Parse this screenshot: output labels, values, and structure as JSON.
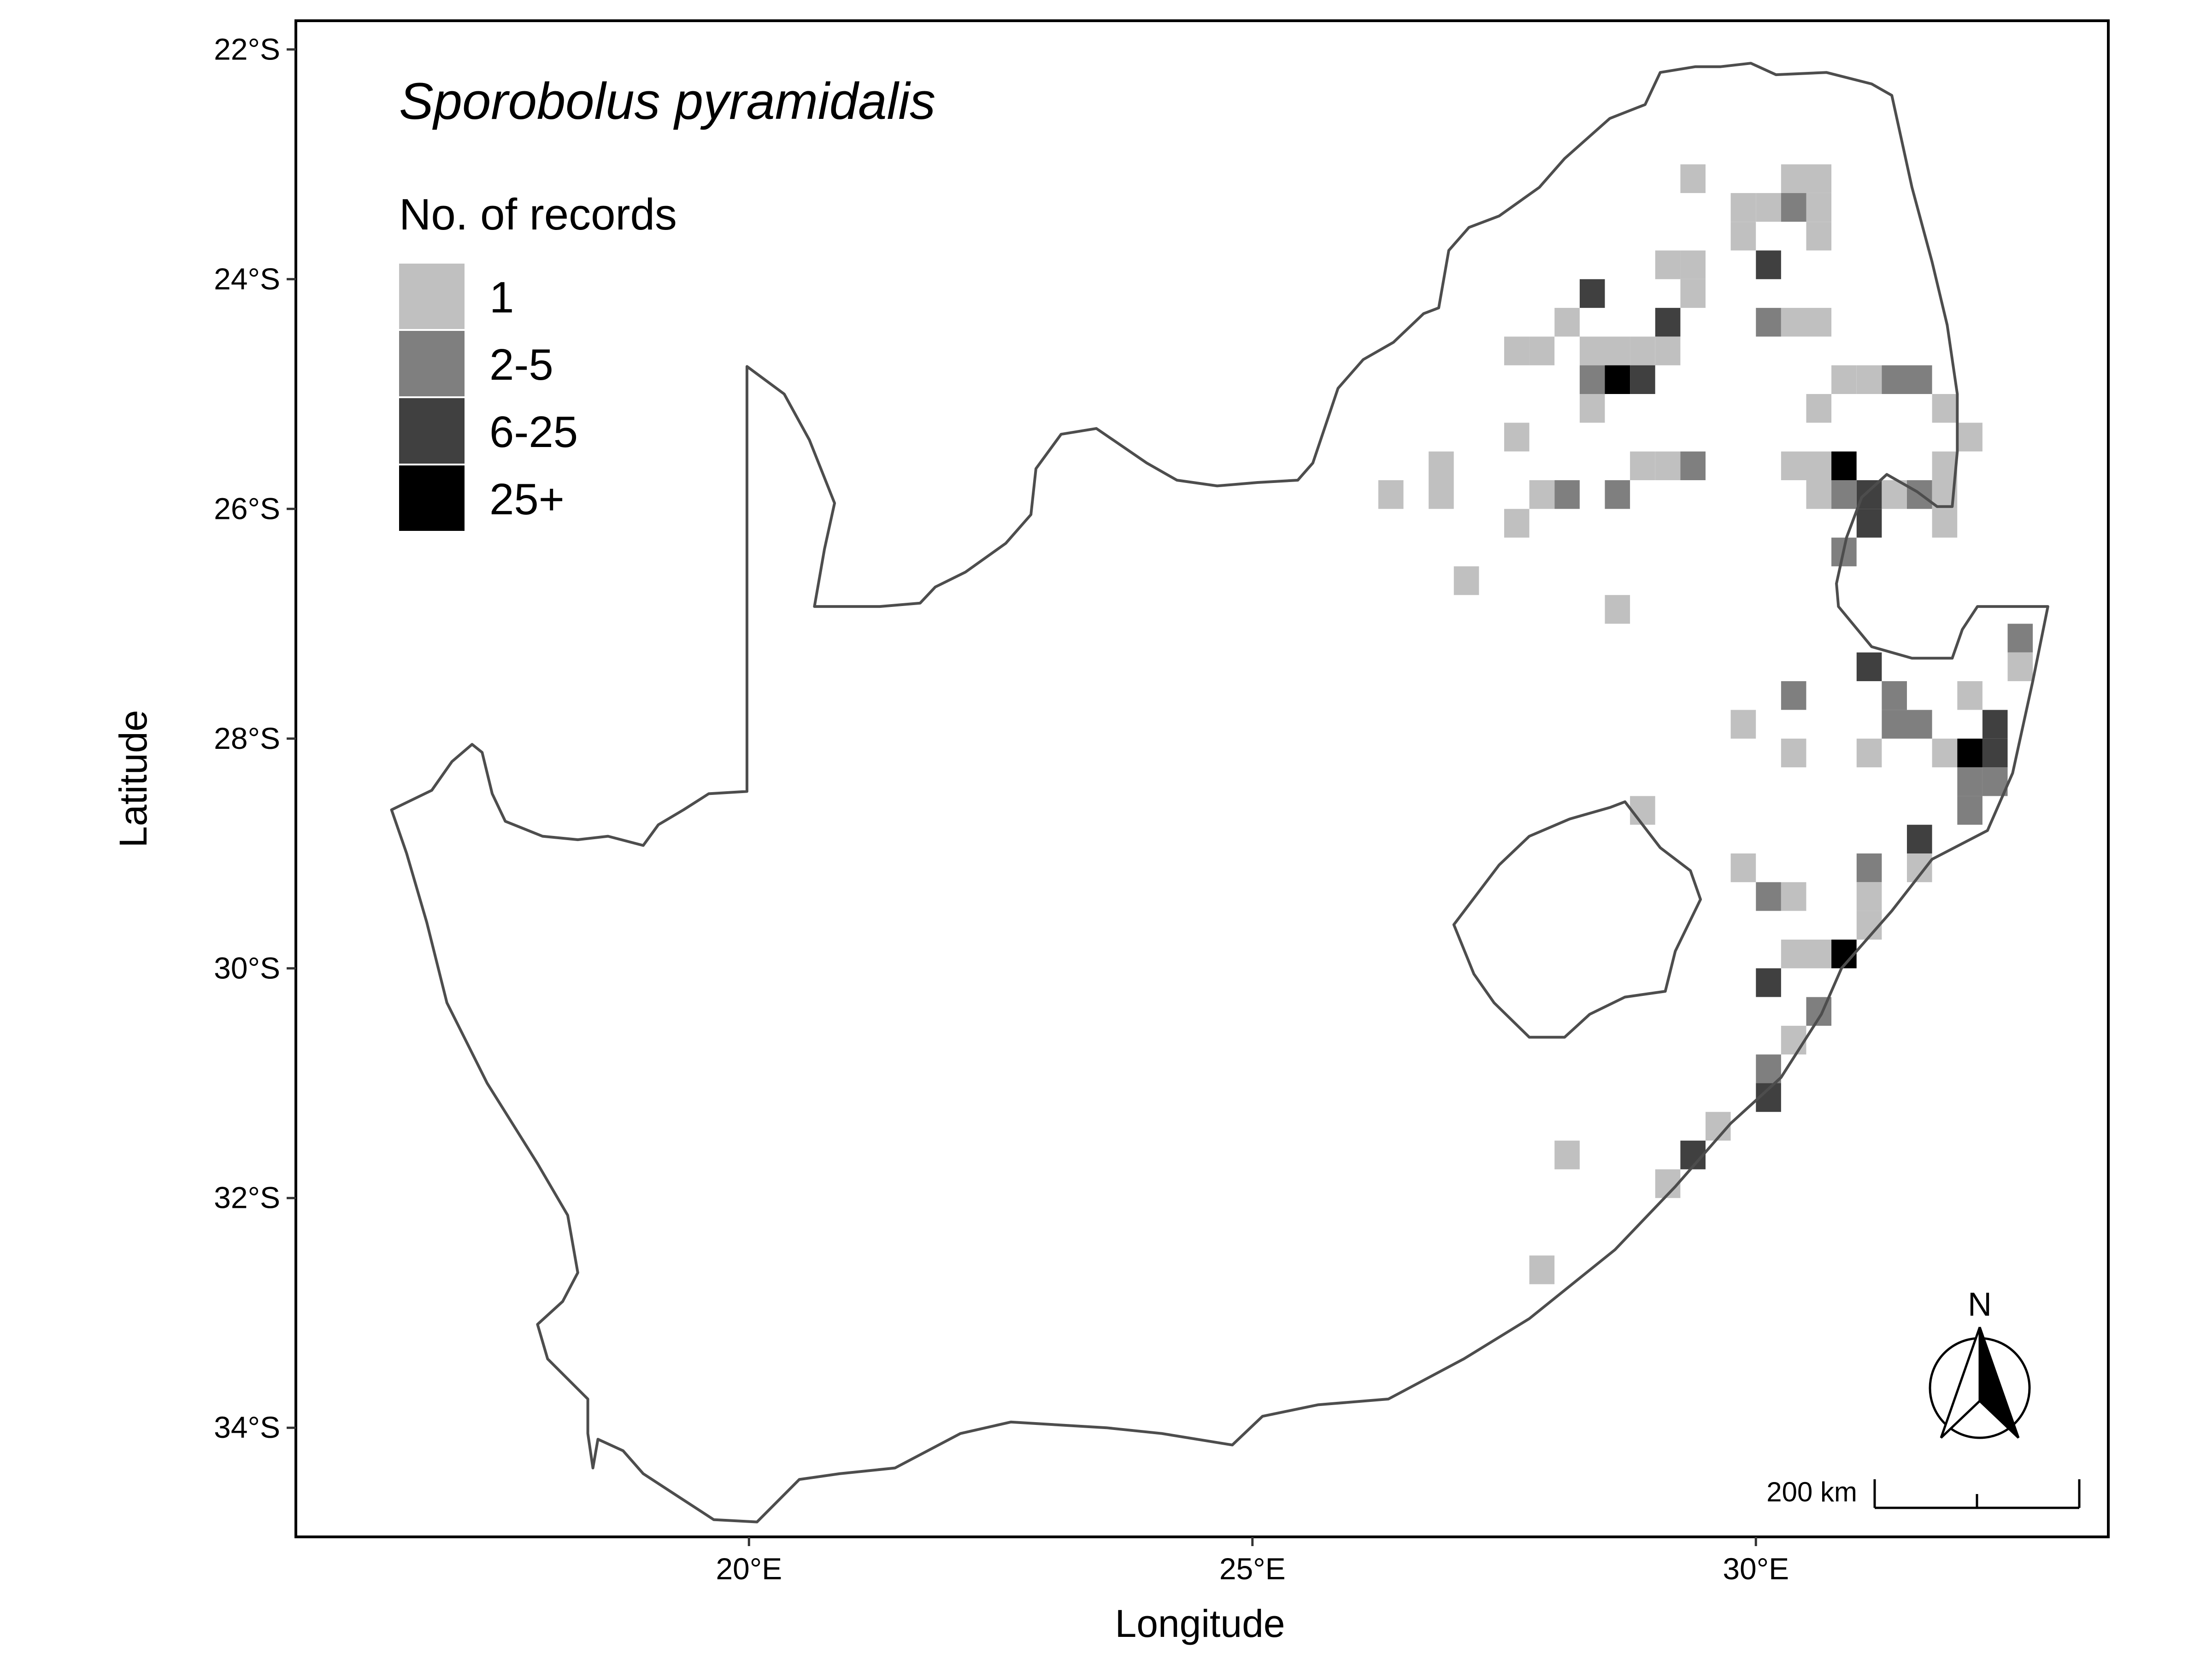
{
  "title": "Sporobolus pyramidalis",
  "legend": {
    "title": "No. of records",
    "classes": [
      {
        "label": "1",
        "color": "#c0c0c0"
      },
      {
        "label": "2-5",
        "color": "#7f7f7f"
      },
      {
        "label": "6-25",
        "color": "#404040"
      },
      {
        "label": "25+",
        "color": "#000000"
      }
    ]
  },
  "axes": {
    "xlabel": "Longitude",
    "ylabel": "Latitude",
    "xticks": [
      {
        "value": 20,
        "label": "20°E"
      },
      {
        "value": 25,
        "label": "25°E"
      },
      {
        "value": 30,
        "label": "30°E"
      }
    ],
    "yticks": [
      {
        "value": -22,
        "label": "22°S"
      },
      {
        "value": -24,
        "label": "24°S"
      },
      {
        "value": -26,
        "label": "26°S"
      },
      {
        "value": -28,
        "label": "28°S"
      },
      {
        "value": -30,
        "label": "30°S"
      },
      {
        "value": -32,
        "label": "32°S"
      },
      {
        "value": -34,
        "label": "34°S"
      }
    ]
  },
  "north_arrow": {
    "label": "N"
  },
  "scale_bar": {
    "label": "200 km"
  },
  "colors": {
    "border": "#4d4d4d",
    "frame": "#000000"
  },
  "chart_data": {
    "type": "grid_map",
    "cell_size_deg": 0.25,
    "xlim": [
      15.5,
      33.5
    ],
    "ylim": [
      -34.95,
      -21.75
    ],
    "levels": [
      "1",
      "2-5",
      "6-25",
      "25+"
    ],
    "cells": [
      [
        29.375,
        -23.125,
        0
      ],
      [
        30.375,
        -23.125,
        0
      ],
      [
        30.625,
        -23.125,
        0
      ],
      [
        29.875,
        -23.375,
        0
      ],
      [
        30.125,
        -23.375,
        0
      ],
      [
        30.375,
        -23.375,
        1
      ],
      [
        30.625,
        -23.375,
        0
      ],
      [
        29.875,
        -23.625,
        0
      ],
      [
        30.625,
        -23.625,
        0
      ],
      [
        29.125,
        -23.875,
        0
      ],
      [
        29.375,
        -23.875,
        0
      ],
      [
        30.125,
        -23.875,
        2
      ],
      [
        28.375,
        -24.125,
        2
      ],
      [
        29.375,
        -24.125,
        0
      ],
      [
        28.125,
        -24.375,
        0
      ],
      [
        29.125,
        -24.375,
        2
      ],
      [
        30.125,
        -24.375,
        1
      ],
      [
        30.375,
        -24.375,
        0
      ],
      [
        30.625,
        -24.375,
        0
      ],
      [
        27.625,
        -24.625,
        0
      ],
      [
        27.875,
        -24.625,
        0
      ],
      [
        28.375,
        -24.625,
        0
      ],
      [
        28.625,
        -24.625,
        0
      ],
      [
        28.875,
        -24.625,
        0
      ],
      [
        29.125,
        -24.625,
        0
      ],
      [
        28.375,
        -24.875,
        1
      ],
      [
        28.625,
        -24.875,
        3
      ],
      [
        28.875,
        -24.875,
        2
      ],
      [
        30.875,
        -24.875,
        0
      ],
      [
        31.125,
        -24.875,
        0
      ],
      [
        31.375,
        -24.875,
        1
      ],
      [
        31.625,
        -24.875,
        1
      ],
      [
        28.375,
        -25.125,
        0
      ],
      [
        30.625,
        -25.125,
        0
      ],
      [
        31.875,
        -25.125,
        0
      ],
      [
        27.625,
        -25.375,
        0
      ],
      [
        32.125,
        -25.375,
        0
      ],
      [
        26.875,
        -25.625,
        0
      ],
      [
        28.875,
        -25.625,
        0
      ],
      [
        29.125,
        -25.625,
        0
      ],
      [
        29.375,
        -25.625,
        1
      ],
      [
        30.375,
        -25.625,
        0
      ],
      [
        30.625,
        -25.625,
        0
      ],
      [
        30.875,
        -25.625,
        3
      ],
      [
        31.875,
        -25.625,
        0
      ],
      [
        26.375,
        -25.875,
        0
      ],
      [
        26.875,
        -25.875,
        0
      ],
      [
        27.875,
        -25.875,
        0
      ],
      [
        28.125,
        -25.875,
        1
      ],
      [
        28.625,
        -25.875,
        1
      ],
      [
        30.625,
        -25.875,
        0
      ],
      [
        30.875,
        -25.875,
        1
      ],
      [
        31.125,
        -25.875,
        2
      ],
      [
        31.375,
        -25.875,
        0
      ],
      [
        31.625,
        -25.875,
        1
      ],
      [
        31.875,
        -25.875,
        0
      ],
      [
        27.625,
        -26.125,
        0
      ],
      [
        31.125,
        -26.125,
        2
      ],
      [
        31.875,
        -26.125,
        0
      ],
      [
        30.875,
        -26.375,
        1
      ],
      [
        27.125,
        -26.625,
        0
      ],
      [
        28.625,
        -26.875,
        0
      ],
      [
        32.625,
        -27.125,
        1
      ],
      [
        31.125,
        -27.375,
        2
      ],
      [
        32.625,
        -27.375,
        0
      ],
      [
        30.375,
        -27.625,
        1
      ],
      [
        31.375,
        -27.625,
        1
      ],
      [
        32.125,
        -27.625,
        0
      ],
      [
        29.875,
        -27.875,
        0
      ],
      [
        31.375,
        -27.875,
        1
      ],
      [
        31.625,
        -27.875,
        1
      ],
      [
        32.375,
        -27.875,
        2
      ],
      [
        30.375,
        -28.125,
        0
      ],
      [
        31.125,
        -28.125,
        0
      ],
      [
        31.875,
        -28.125,
        0
      ],
      [
        32.125,
        -28.125,
        3
      ],
      [
        32.375,
        -28.125,
        2
      ],
      [
        32.125,
        -28.375,
        1
      ],
      [
        32.375,
        -28.375,
        1
      ],
      [
        28.875,
        -28.625,
        0
      ],
      [
        32.125,
        -28.625,
        1
      ],
      [
        31.625,
        -28.875,
        2
      ],
      [
        29.875,
        -29.125,
        0
      ],
      [
        31.125,
        -29.125,
        1
      ],
      [
        31.625,
        -29.125,
        0
      ],
      [
        30.125,
        -29.375,
        1
      ],
      [
        30.375,
        -29.375,
        0
      ],
      [
        31.125,
        -29.375,
        0
      ],
      [
        31.125,
        -29.625,
        0
      ],
      [
        30.375,
        -29.875,
        0
      ],
      [
        30.625,
        -29.875,
        0
      ],
      [
        30.875,
        -29.875,
        3
      ],
      [
        30.125,
        -30.125,
        2
      ],
      [
        30.625,
        -30.375,
        1
      ],
      [
        30.375,
        -30.625,
        0
      ],
      [
        30.125,
        -30.875,
        1
      ],
      [
        30.125,
        -31.125,
        2
      ],
      [
        29.625,
        -31.375,
        0
      ],
      [
        28.125,
        -31.625,
        0
      ],
      [
        29.375,
        -31.625,
        2
      ],
      [
        29.125,
        -31.875,
        0
      ],
      [
        27.875,
        -32.625,
        0
      ]
    ],
    "boundaries": [
      {
        "name": "south-africa",
        "points": [
          [
            16.45,
            -28.62
          ],
          [
            16.85,
            -28.45
          ],
          [
            17.05,
            -28.2
          ],
          [
            17.25,
            -28.05
          ],
          [
            17.35,
            -28.12
          ],
          [
            17.45,
            -28.48
          ],
          [
            17.58,
            -28.72
          ],
          [
            17.95,
            -28.85
          ],
          [
            18.3,
            -28.88
          ],
          [
            18.6,
            -28.85
          ],
          [
            18.95,
            -28.93
          ],
          [
            19.1,
            -28.75
          ],
          [
            19.35,
            -28.62
          ],
          [
            19.6,
            -28.48
          ],
          [
            19.98,
            -28.46
          ],
          [
            19.98,
            -24.76
          ],
          [
            20.35,
            -25.0
          ],
          [
            20.6,
            -25.4
          ],
          [
            20.85,
            -25.95
          ],
          [
            20.75,
            -26.35
          ],
          [
            20.65,
            -26.85
          ],
          [
            20.9,
            -26.85
          ],
          [
            21.3,
            -26.85
          ],
          [
            21.7,
            -26.82
          ],
          [
            21.85,
            -26.68
          ],
          [
            22.15,
            -26.55
          ],
          [
            22.55,
            -26.3
          ],
          [
            22.8,
            -26.05
          ],
          [
            22.85,
            -25.65
          ],
          [
            23.1,
            -25.35
          ],
          [
            23.45,
            -25.3
          ],
          [
            23.95,
            -25.6
          ],
          [
            24.25,
            -25.75
          ],
          [
            24.65,
            -25.8
          ],
          [
            25.05,
            -25.77
          ],
          [
            25.45,
            -25.75
          ],
          [
            25.6,
            -25.6
          ],
          [
            25.85,
            -24.95
          ],
          [
            26.1,
            -24.7
          ],
          [
            26.4,
            -24.55
          ],
          [
            26.7,
            -24.3
          ],
          [
            26.85,
            -24.25
          ],
          [
            26.95,
            -23.75
          ],
          [
            27.15,
            -23.55
          ],
          [
            27.45,
            -23.45
          ],
          [
            27.85,
            -23.2
          ],
          [
            28.1,
            -22.95
          ],
          [
            28.55,
            -22.6
          ],
          [
            28.9,
            -22.48
          ],
          [
            29.05,
            -22.2
          ],
          [
            29.4,
            -22.15
          ],
          [
            29.65,
            -22.15
          ],
          [
            29.95,
            -22.12
          ],
          [
            30.2,
            -22.22
          ],
          [
            30.7,
            -22.2
          ],
          [
            31.15,
            -22.3
          ],
          [
            31.35,
            -22.4
          ],
          [
            31.55,
            -23.2
          ],
          [
            31.75,
            -23.85
          ],
          [
            31.9,
            -24.4
          ],
          [
            32.0,
            -25.0
          ],
          [
            32.0,
            -25.5
          ],
          [
            31.95,
            -25.98
          ],
          [
            31.8,
            -25.98
          ],
          [
            31.6,
            -25.85
          ],
          [
            31.3,
            -25.7
          ],
          [
            31.05,
            -25.9
          ],
          [
            30.9,
            -26.25
          ],
          [
            30.8,
            -26.65
          ],
          [
            30.82,
            -26.85
          ],
          [
            31.15,
            -27.2
          ],
          [
            31.55,
            -27.3
          ],
          [
            31.95,
            -27.3
          ],
          [
            32.05,
            -27.05
          ],
          [
            32.2,
            -26.85
          ],
          [
            32.9,
            -26.85
          ],
          [
            32.75,
            -27.5
          ],
          [
            32.55,
            -28.3
          ],
          [
            32.3,
            -28.8
          ],
          [
            31.75,
            -29.05
          ],
          [
            31.35,
            -29.5
          ],
          [
            30.85,
            -30.0
          ],
          [
            30.65,
            -30.4
          ],
          [
            30.25,
            -30.95
          ],
          [
            29.75,
            -31.35
          ],
          [
            29.2,
            -31.9
          ],
          [
            28.6,
            -32.45
          ],
          [
            27.75,
            -33.05
          ],
          [
            27.1,
            -33.4
          ],
          [
            26.35,
            -33.75
          ],
          [
            25.65,
            -33.8
          ],
          [
            25.1,
            -33.9
          ],
          [
            24.8,
            -34.15
          ],
          [
            24.1,
            -34.05
          ],
          [
            23.55,
            -34.0
          ],
          [
            22.6,
            -33.95
          ],
          [
            22.1,
            -34.05
          ],
          [
            21.45,
            -34.35
          ],
          [
            20.9,
            -34.4
          ],
          [
            20.5,
            -34.45
          ],
          [
            20.08,
            -34.82
          ],
          [
            19.65,
            -34.8
          ],
          [
            19.3,
            -34.6
          ],
          [
            18.95,
            -34.4
          ],
          [
            18.75,
            -34.2
          ],
          [
            18.5,
            -34.1
          ],
          [
            18.45,
            -34.35
          ],
          [
            18.4,
            -34.05
          ],
          [
            18.4,
            -33.75
          ],
          [
            18.0,
            -33.4
          ],
          [
            17.9,
            -33.1
          ],
          [
            18.15,
            -32.9
          ],
          [
            18.3,
            -32.65
          ],
          [
            18.2,
            -32.15
          ],
          [
            17.9,
            -31.7
          ],
          [
            17.4,
            -31.0
          ],
          [
            17.0,
            -30.3
          ],
          [
            16.8,
            -29.6
          ],
          [
            16.6,
            -29.0
          ],
          [
            16.45,
            -28.62
          ]
        ]
      },
      {
        "name": "lesotho",
        "points": [
          [
            27.0,
            -29.62
          ],
          [
            27.45,
            -29.1
          ],
          [
            27.75,
            -28.85
          ],
          [
            28.15,
            -28.7
          ],
          [
            28.55,
            -28.6
          ],
          [
            28.7,
            -28.55
          ],
          [
            29.05,
            -28.95
          ],
          [
            29.35,
            -29.15
          ],
          [
            29.45,
            -29.4
          ],
          [
            29.2,
            -29.85
          ],
          [
            29.1,
            -30.2
          ],
          [
            28.7,
            -30.25
          ],
          [
            28.35,
            -30.4
          ],
          [
            28.1,
            -30.6
          ],
          [
            27.75,
            -30.6
          ],
          [
            27.4,
            -30.3
          ],
          [
            27.2,
            -30.05
          ],
          [
            27.0,
            -29.62
          ]
        ]
      }
    ]
  }
}
